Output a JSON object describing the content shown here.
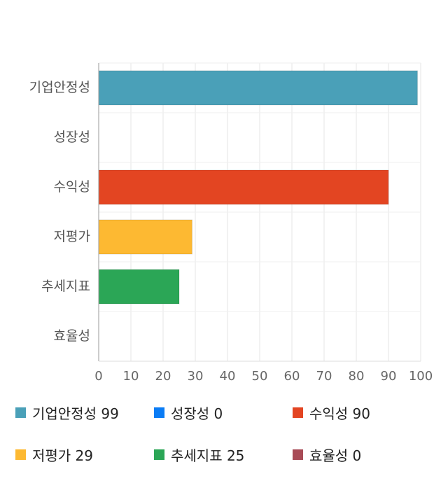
{
  "chart_data": {
    "type": "bar",
    "orientation": "horizontal",
    "categories": [
      "기업안정성",
      "성장성",
      "수익성",
      "저평가",
      "추세지표",
      "효율성"
    ],
    "values": [
      99,
      0,
      90,
      29,
      25,
      0
    ],
    "colors": [
      "#4aa0b8",
      "#0a7cf5",
      "#e34522",
      "#fdb932",
      "#2ba656",
      "#a84b56"
    ],
    "xlim": [
      0,
      100
    ],
    "xticks": [
      0,
      10,
      20,
      30,
      40,
      50,
      60,
      70,
      80,
      90,
      100
    ],
    "grid": true,
    "legend_position": "bottom"
  },
  "legend": [
    {
      "label": "기업안정성 99",
      "color": "#4aa0b8"
    },
    {
      "label": "성장성 0",
      "color": "#0a7cf5"
    },
    {
      "label": "수익성 90",
      "color": "#e34522"
    },
    {
      "label": "저평가 29",
      "color": "#fdb932"
    },
    {
      "label": "추세지표 25",
      "color": "#2ba656"
    },
    {
      "label": "효율성 0",
      "color": "#a84b56"
    }
  ]
}
